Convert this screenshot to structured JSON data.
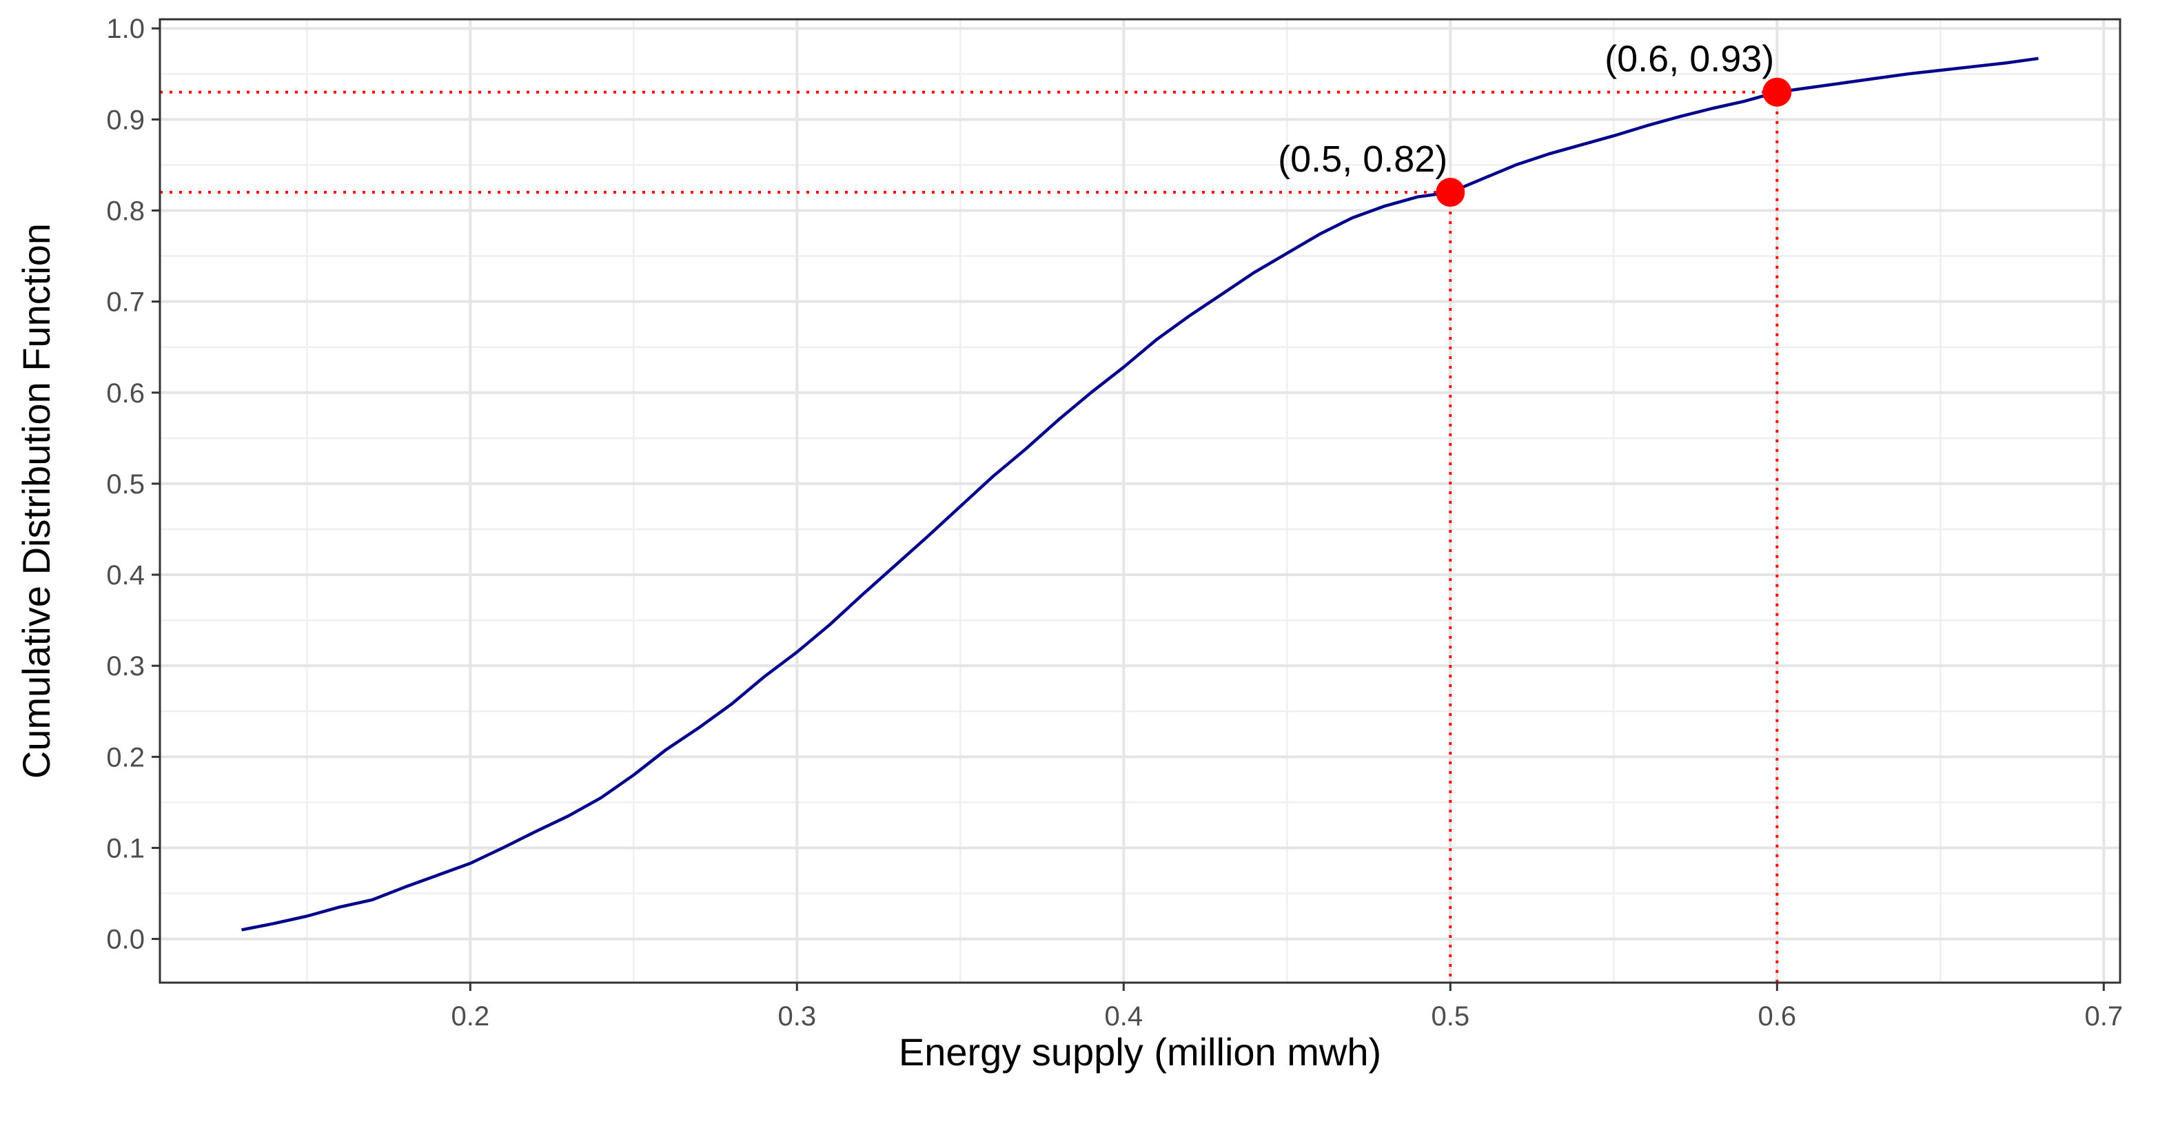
{
  "chart_data": {
    "type": "line",
    "title": "",
    "xlabel": "Energy supply (million mwh)",
    "ylabel": "Cumulative Distribution Function",
    "xlim": [
      0.105,
      0.705
    ],
    "ylim": [
      -0.048,
      1.01
    ],
    "x_ticks": [
      0.2,
      0.3,
      0.4,
      0.5,
      0.6,
      0.7
    ],
    "x_tick_labels": [
      "0.2",
      "0.3",
      "0.4",
      "0.5",
      "0.6",
      "0.7"
    ],
    "y_ticks": [
      0.0,
      0.1,
      0.2,
      0.3,
      0.4,
      0.5,
      0.6,
      0.7,
      0.8,
      0.9,
      1.0
    ],
    "y_tick_labels": [
      "0.0",
      "0.1",
      "0.2",
      "0.3",
      "0.4",
      "0.5",
      "0.6",
      "0.7",
      "0.8",
      "0.9",
      "1.0"
    ],
    "grid": true,
    "legend": "none",
    "series": [
      {
        "name": "CDF",
        "color": "#00008b",
        "x": [
          0.13,
          0.14,
          0.15,
          0.16,
          0.17,
          0.18,
          0.19,
          0.2,
          0.21,
          0.22,
          0.23,
          0.24,
          0.25,
          0.26,
          0.27,
          0.28,
          0.29,
          0.3,
          0.31,
          0.32,
          0.33,
          0.34,
          0.35,
          0.36,
          0.37,
          0.38,
          0.39,
          0.4,
          0.41,
          0.42,
          0.43,
          0.44,
          0.45,
          0.46,
          0.47,
          0.48,
          0.49,
          0.5,
          0.51,
          0.52,
          0.53,
          0.54,
          0.55,
          0.56,
          0.57,
          0.58,
          0.59,
          0.6,
          0.61,
          0.62,
          0.63,
          0.64,
          0.65,
          0.66,
          0.67,
          0.68
        ],
        "values": [
          0.01,
          0.017,
          0.025,
          0.035,
          0.043,
          0.057,
          0.07,
          0.083,
          0.1,
          0.118,
          0.135,
          0.155,
          0.18,
          0.208,
          0.232,
          0.258,
          0.288,
          0.315,
          0.345,
          0.378,
          0.41,
          0.442,
          0.475,
          0.508,
          0.538,
          0.57,
          0.6,
          0.628,
          0.658,
          0.684,
          0.708,
          0.732,
          0.753,
          0.774,
          0.792,
          0.805,
          0.815,
          0.82,
          0.835,
          0.85,
          0.862,
          0.872,
          0.882,
          0.893,
          0.903,
          0.912,
          0.92,
          0.93,
          0.935,
          0.94,
          0.945,
          0.95,
          0.954,
          0.958,
          0.962,
          0.967
        ]
      }
    ],
    "points": [
      {
        "x": 0.5,
        "y": 0.82,
        "label": "(0.5, 0.82)",
        "color": "#ff0000"
      },
      {
        "x": 0.6,
        "y": 0.93,
        "label": "(0.6, 0.93)",
        "color": "#ff0000"
      }
    ]
  }
}
